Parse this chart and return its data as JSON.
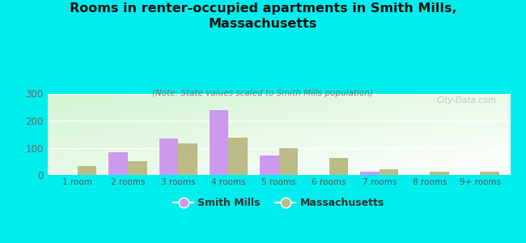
{
  "title": "Rooms in renter-occupied apartments in Smith Mills,\nMassachusetts",
  "subtitle": "(Note: State values scaled to Smith Mills population)",
  "categories": [
    "1 room",
    "2 rooms",
    "3 rooms",
    "4 rooms",
    "5 rooms",
    "6 rooms",
    "7 rooms",
    "8 rooms",
    "9+ rooms"
  ],
  "smith_mills": [
    0,
    83,
    133,
    238,
    72,
    0,
    13,
    0,
    0
  ],
  "massachusetts": [
    32,
    50,
    115,
    138,
    100,
    62,
    22,
    11,
    11
  ],
  "smith_mills_color": "#cc99ee",
  "massachusetts_color": "#bbbb88",
  "background_color": "#00eeee",
  "ylim": [
    0,
    300
  ],
  "yticks": [
    0,
    100,
    200,
    300
  ],
  "bar_width": 0.38,
  "watermark": "City-Data.com"
}
